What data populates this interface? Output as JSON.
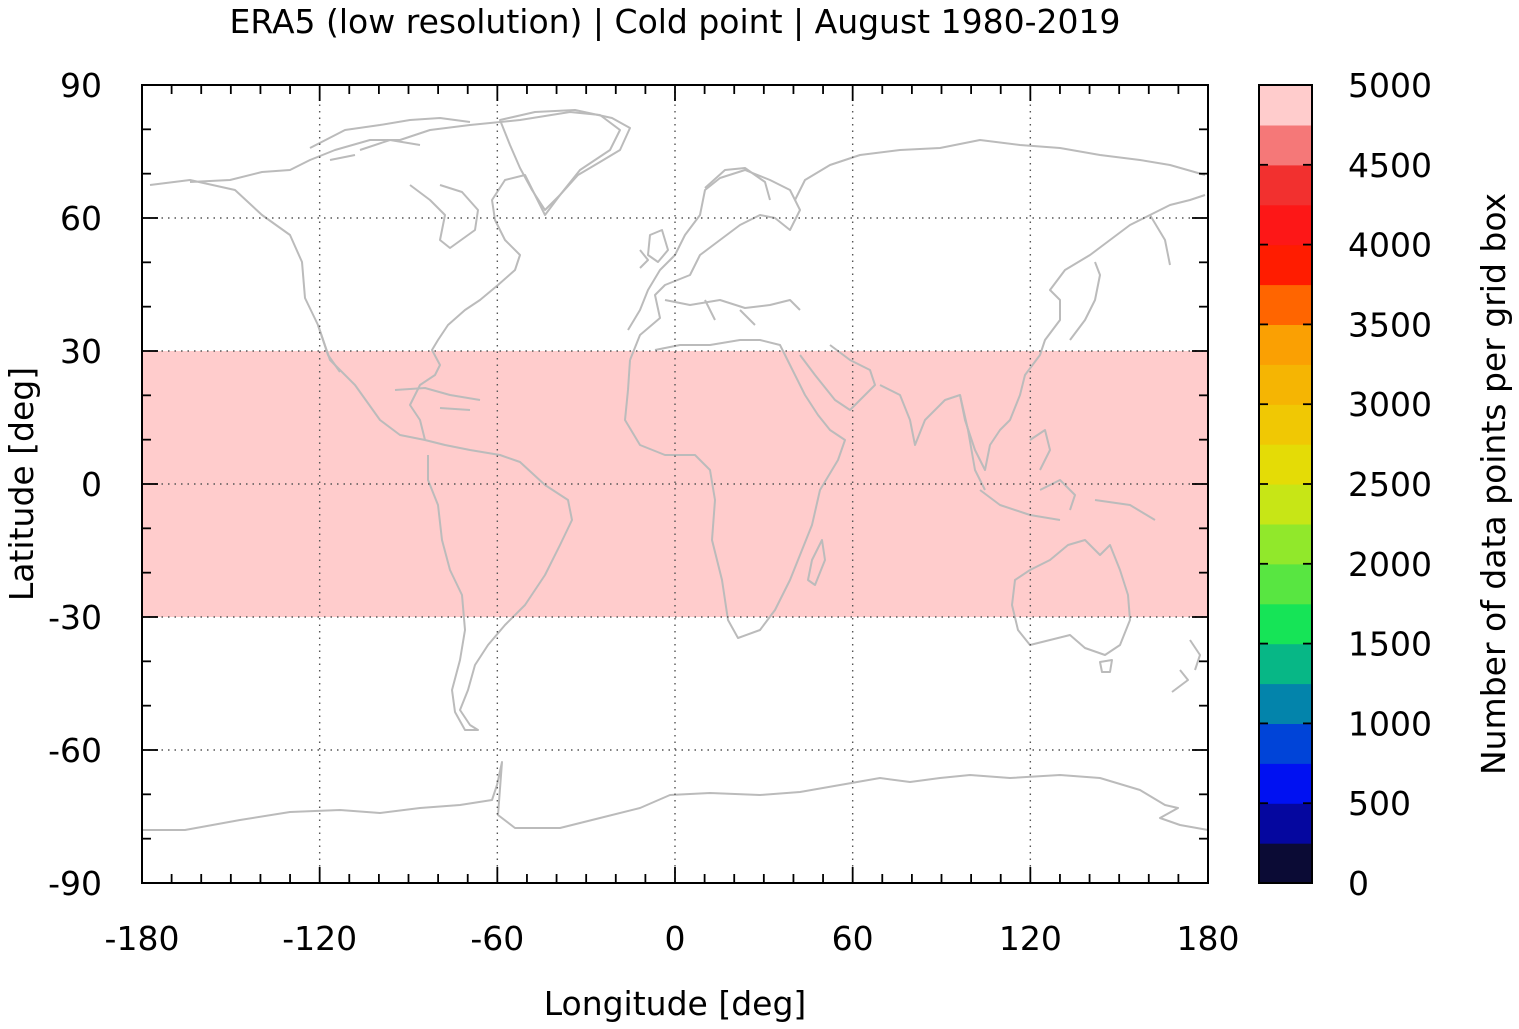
{
  "title": "ERA5 (low resolution) | Cold point | August 1980-2019",
  "xlabel": "Longitude [deg]",
  "ylabel": "Latitude [deg]",
  "colorbar_label": "Number of data points per grid box",
  "chart_data": {
    "type": "heatmap",
    "title": "ERA5 (low resolution) | Cold point | August 1980-2019",
    "xlabel": "Longitude [deg]",
    "ylabel": "Latitude [deg]",
    "xlim": [
      -180,
      180
    ],
    "ylim": [
      -90,
      90
    ],
    "x_ticks": [
      "-180",
      "-120",
      "-60",
      "0",
      "60",
      "120",
      "180"
    ],
    "y_ticks": [
      "90",
      "60",
      "30",
      "0",
      "-30",
      "-60",
      "-90"
    ],
    "grid": true,
    "band": {
      "lat_range": [
        -30,
        30
      ],
      "value": 5000,
      "color": "#ffcccc"
    },
    "colorbar": {
      "label": "Number of data points per grid box",
      "range": [
        0,
        5000
      ],
      "tick_labels": [
        "0",
        "500",
        "1000",
        "1500",
        "2000",
        "2500",
        "3000",
        "3500",
        "4000",
        "4500",
        "5000"
      ],
      "colors": [
        "#0b0b35",
        "#05079f",
        "#0011f2",
        "#0044d8",
        "#0384ab",
        "#07b786",
        "#16e457",
        "#58e641",
        "#91e82b",
        "#c7e616",
        "#e4dc06",
        "#f0c804",
        "#f5b503",
        "#faa003",
        "#ff6500",
        "#ff1c00",
        "#fd1717",
        "#f2302f",
        "#f57878",
        "#ffcccc"
      ]
    },
    "coastline_color": "#bbbbbb"
  }
}
